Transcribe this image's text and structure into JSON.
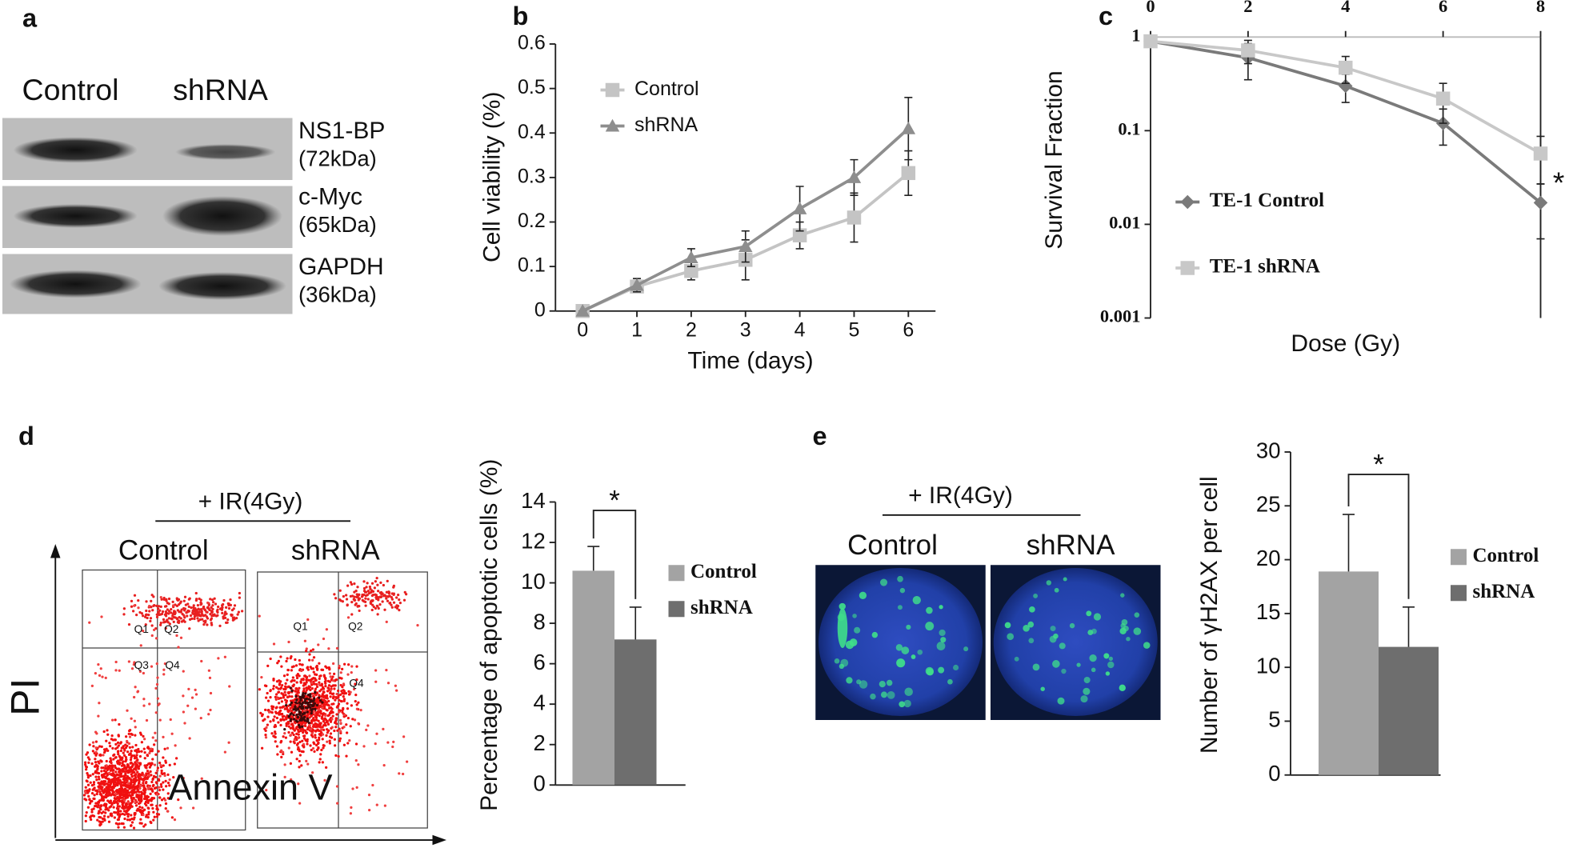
{
  "panel_labels": [
    "a",
    "b",
    "c",
    "d",
    "e"
  ],
  "blot": {
    "lanes": [
      "Control",
      "shRNA"
    ],
    "bands": [
      {
        "name": "NS1-BP",
        "size": "(72kDa)"
      },
      {
        "name": "c-Myc",
        "size": "(65kDa)"
      },
      {
        "name": "GAPDH",
        "size": "(36kDa)"
      }
    ]
  },
  "flow": {
    "treatment": "+ IR(4Gy)",
    "groups": [
      "Control",
      "shRNA"
    ],
    "quadrants": [
      "Q1",
      "Q2",
      "Q3",
      "Q4"
    ],
    "ylabel": "PI",
    "xlabel": "Annexin V"
  },
  "imaging": {
    "treatment": "+ IR(4Gy)",
    "groups": [
      "Control",
      "shRNA"
    ]
  },
  "chart_data": [
    {
      "type": "line",
      "xlabel": "Time (days)",
      "ylabel": "Cell viability (%)",
      "x": [
        0,
        1,
        2,
        3,
        4,
        5,
        6
      ],
      "xlim": [
        -0.5,
        6.5
      ],
      "xticks": [
        0,
        1,
        2,
        3,
        4,
        5,
        6
      ],
      "ylim": [
        0,
        0.6
      ],
      "yticks": [
        0,
        0.1,
        0.2,
        0.3,
        0.4,
        0.5,
        0.6
      ],
      "xaxis": "bottom",
      "legend": "upper left",
      "series": [
        {
          "name": "Control",
          "color": "#c4c4c4",
          "marker": "square",
          "values": [
            0,
            0.055,
            0.09,
            0.115,
            0.17,
            0.21,
            0.31
          ],
          "errors": [
            0,
            0.01,
            0.02,
            0.045,
            0.03,
            0.055,
            0.05
          ]
        },
        {
          "name": "shRNA",
          "color": "#8e8e8e",
          "marker": "triangle",
          "values": [
            0,
            0.058,
            0.12,
            0.145,
            0.23,
            0.3,
            0.41
          ],
          "errors": [
            0,
            0.015,
            0.02,
            0.035,
            0.05,
            0.04,
            0.07
          ]
        }
      ]
    },
    {
      "type": "line",
      "xlabel": "Dose (Gy)",
      "ylabel": "Survival Fraction",
      "x": [
        0,
        2,
        4,
        6,
        8
      ],
      "xlim": [
        0,
        8
      ],
      "xticks": [
        0,
        2,
        4,
        6,
        8
      ],
      "ylim": [
        0.001,
        1
      ],
      "yticks": [
        1,
        0.1,
        0.01,
        0.001
      ],
      "yscale": "log",
      "xaxis": "top",
      "legend": "lower left",
      "annotation": "*",
      "series": [
        {
          "name": "TE-1 Control",
          "color": "#7a7a7a",
          "marker": "diamond",
          "values": [
            0.9,
            0.6,
            0.3,
            0.12,
            0.017
          ],
          "errors": [
            0.05,
            0.25,
            0.1,
            0.05,
            0.01
          ]
        },
        {
          "name": "TE-1 shRNA",
          "color": "#c8c8c8",
          "marker": "square",
          "values": [
            0.9,
            0.72,
            0.47,
            0.22,
            0.057
          ],
          "errors": [
            0.05,
            0.2,
            0.15,
            0.1,
            0.03
          ]
        }
      ]
    },
    {
      "type": "bar",
      "ylabel": "Percentage of apoptotic cells (%)",
      "ylim": [
        0,
        14
      ],
      "yticks": [
        0,
        2,
        4,
        6,
        8,
        10,
        12,
        14
      ],
      "legend": "right",
      "annotation": "*",
      "series": [
        {
          "name": "Control",
          "color": "#a3a3a3",
          "values": [
            10.6
          ],
          "errors": [
            1.2
          ]
        },
        {
          "name": "shRNA",
          "color": "#6e6e6e",
          "values": [
            7.2
          ],
          "errors": [
            1.6
          ]
        }
      ]
    },
    {
      "type": "bar",
      "ylabel": "Number of γH2AX per cell",
      "ylim": [
        0,
        30
      ],
      "yticks": [
        0,
        5,
        10,
        15,
        20,
        25,
        30
      ],
      "legend": "right",
      "annotation": "*",
      "series": [
        {
          "name": "Control",
          "color": "#a3a3a3",
          "values": [
            18.9
          ],
          "errors": [
            5.3
          ]
        },
        {
          "name": "shRNA",
          "color": "#6e6e6e",
          "values": [
            11.9
          ],
          "errors": [
            3.7
          ]
        }
      ]
    }
  ]
}
